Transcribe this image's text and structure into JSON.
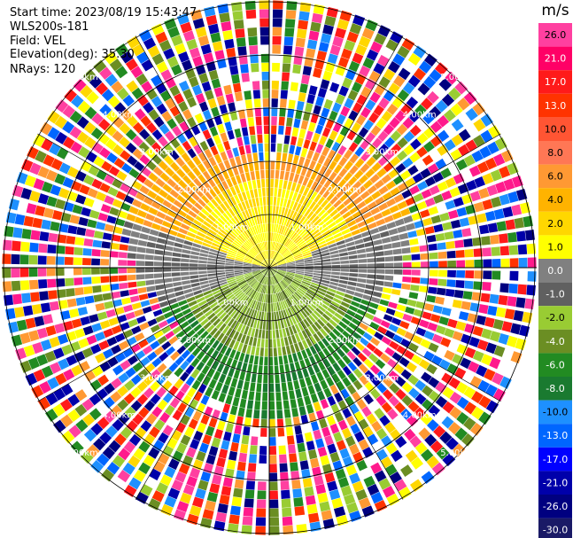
{
  "header": {
    "start_time": "Start time: 2023/08/19 15:43:47",
    "instrument": "WLS200s-181",
    "field": "Field: VEL",
    "elevation": "Elevation(deg): 35.30",
    "nrays": "NRays: 120"
  },
  "ppi": {
    "rings": [
      {
        "label": "1.00km"
      },
      {
        "label": "2.00km"
      },
      {
        "label": "3.00km"
      },
      {
        "label": "4.00km"
      },
      {
        "label": "5.00km"
      }
    ],
    "n_rays": 120
  },
  "colorbar": {
    "unit": "m/s",
    "ticks": [
      "26.0",
      "21.0",
      "17.0",
      "13.0",
      "10.0",
      "8.0",
      "6.0",
      "4.0",
      "2.0",
      "1.0",
      "0.0",
      "-1.0",
      "-2.0",
      "-4.0",
      "-6.0",
      "-8.0",
      "-10.0",
      "-13.0",
      "-17.0",
      "-21.0",
      "-26.0",
      "-30.0"
    ],
    "colors": [
      "#ff40a0",
      "#ff0066",
      "#ff1a1a",
      "#ff3300",
      "#ff5533",
      "#ff7755",
      "#ff9933",
      "#ffb300",
      "#ffd700",
      "#ffff00",
      "#808080",
      "#606060",
      "#99cc33",
      "#6b8e23",
      "#228b22",
      "#1a7a30",
      "#1e90ff",
      "#0066ff",
      "#0000ff",
      "#0000aa",
      "#000080",
      "#1a1a66"
    ]
  }
}
